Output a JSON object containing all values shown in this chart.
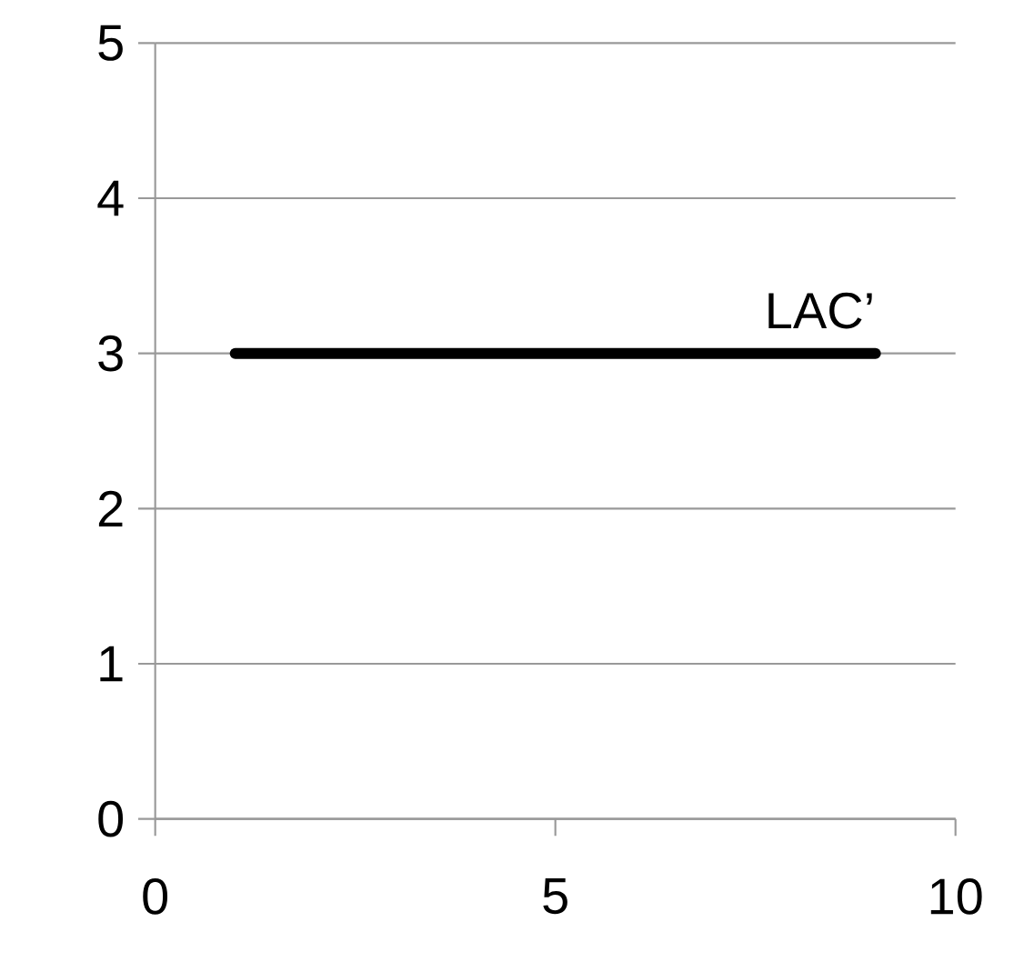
{
  "chart_data": {
    "type": "line",
    "x": [
      1,
      9
    ],
    "series": [
      {
        "name": "LAC’",
        "color": "#000000",
        "values": [
          3,
          3
        ]
      }
    ],
    "xlim": [
      0,
      10
    ],
    "ylim": [
      0,
      5
    ],
    "xticks": [
      0,
      5,
      10
    ],
    "yticks": [
      0,
      1,
      2,
      3,
      4,
      5
    ],
    "grid": "y",
    "legend": false,
    "marker": "none",
    "line_style": "solid"
  }
}
